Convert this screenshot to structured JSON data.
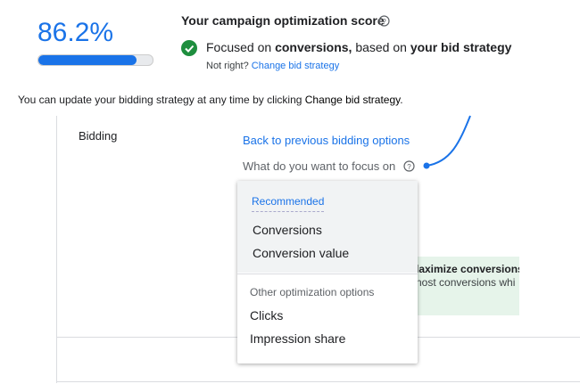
{
  "score": {
    "value": 86.2,
    "label": "86.2%"
  },
  "header": {
    "title": "Your campaign optimization score",
    "focus": [
      "Focused on ",
      "conversions,",
      " based on ",
      "your bid strategy"
    ],
    "not_right": "Not right?",
    "change_link": "Change bid strategy"
  },
  "note": [
    "You can update your bidding strategy at any time by clicking ",
    "Change bid strategy",
    "."
  ],
  "bidding": {
    "label": "Bidding",
    "back_link": "Back to previous bidding options",
    "question": "What do you want to focus on"
  },
  "dropdown": {
    "recommended_heading": "Recommended",
    "recommended": [
      "Conversions",
      "Conversion value"
    ],
    "other_heading": "Other optimization options",
    "other": [
      "Clicks",
      "Impression share"
    ]
  },
  "background_card": {
    "title": "laximize conversions",
    "text": "nost conversions whi"
  }
}
